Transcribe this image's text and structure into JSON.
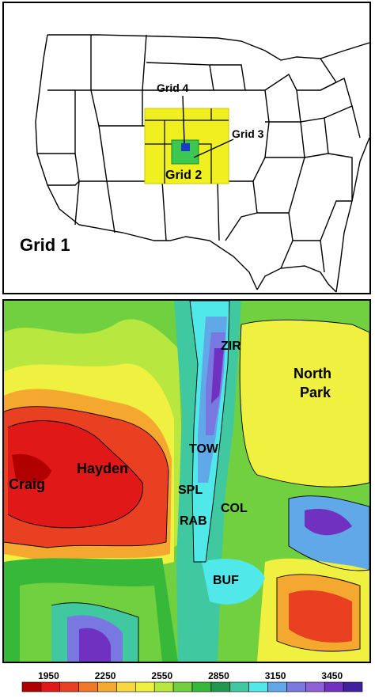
{
  "top_map": {
    "grid1_label": "Grid 1",
    "grid2_label": "Grid 2",
    "grid3_label": "Grid 3",
    "grid4_label": "Grid 4",
    "colors": {
      "grid2": "#f0f020",
      "grid3": "#3cc850",
      "grid4": "#1a3cc8",
      "outline": "#000000"
    }
  },
  "terrain_map": {
    "stations": {
      "zir": "ZIR",
      "tow": "TOW",
      "spl": "SPL",
      "rab": "RAB",
      "col": "COL",
      "buf": "BUF"
    },
    "places": {
      "north": "North",
      "park": "Park",
      "hayden": "Hayden",
      "craig": "Craig"
    }
  },
  "colorbar": {
    "tick_labels": [
      "1950",
      "2250",
      "2550",
      "2850",
      "3150",
      "3450"
    ],
    "colors": [
      "#b00000",
      "#e01818",
      "#e84020",
      "#f07828",
      "#f5a830",
      "#f8d840",
      "#f0f040",
      "#b8e840",
      "#70d040",
      "#38b838",
      "#209850",
      "#40c8a0",
      "#50e8e8",
      "#60a8e8",
      "#7878e0",
      "#9060d8",
      "#7030c0",
      "#4020a0"
    ]
  }
}
